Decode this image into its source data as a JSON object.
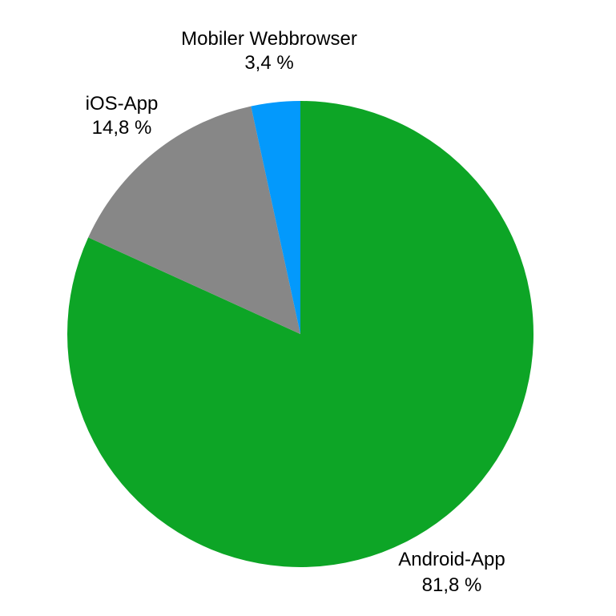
{
  "chart_data": {
    "type": "pie",
    "start_angle_deg": 0,
    "direction": "clockwise",
    "slices": [
      {
        "name": "Android-App",
        "value": 81.8,
        "value_label": "81,8 %",
        "color": "#0da526"
      },
      {
        "name": "iOS-App",
        "value": 14.8,
        "value_label": "14,8 %",
        "color": "#878787"
      },
      {
        "name": "Mobiler Webbrowser",
        "value": 3.4,
        "value_label": "3,4 %",
        "color": "#0399fc"
      }
    ]
  }
}
